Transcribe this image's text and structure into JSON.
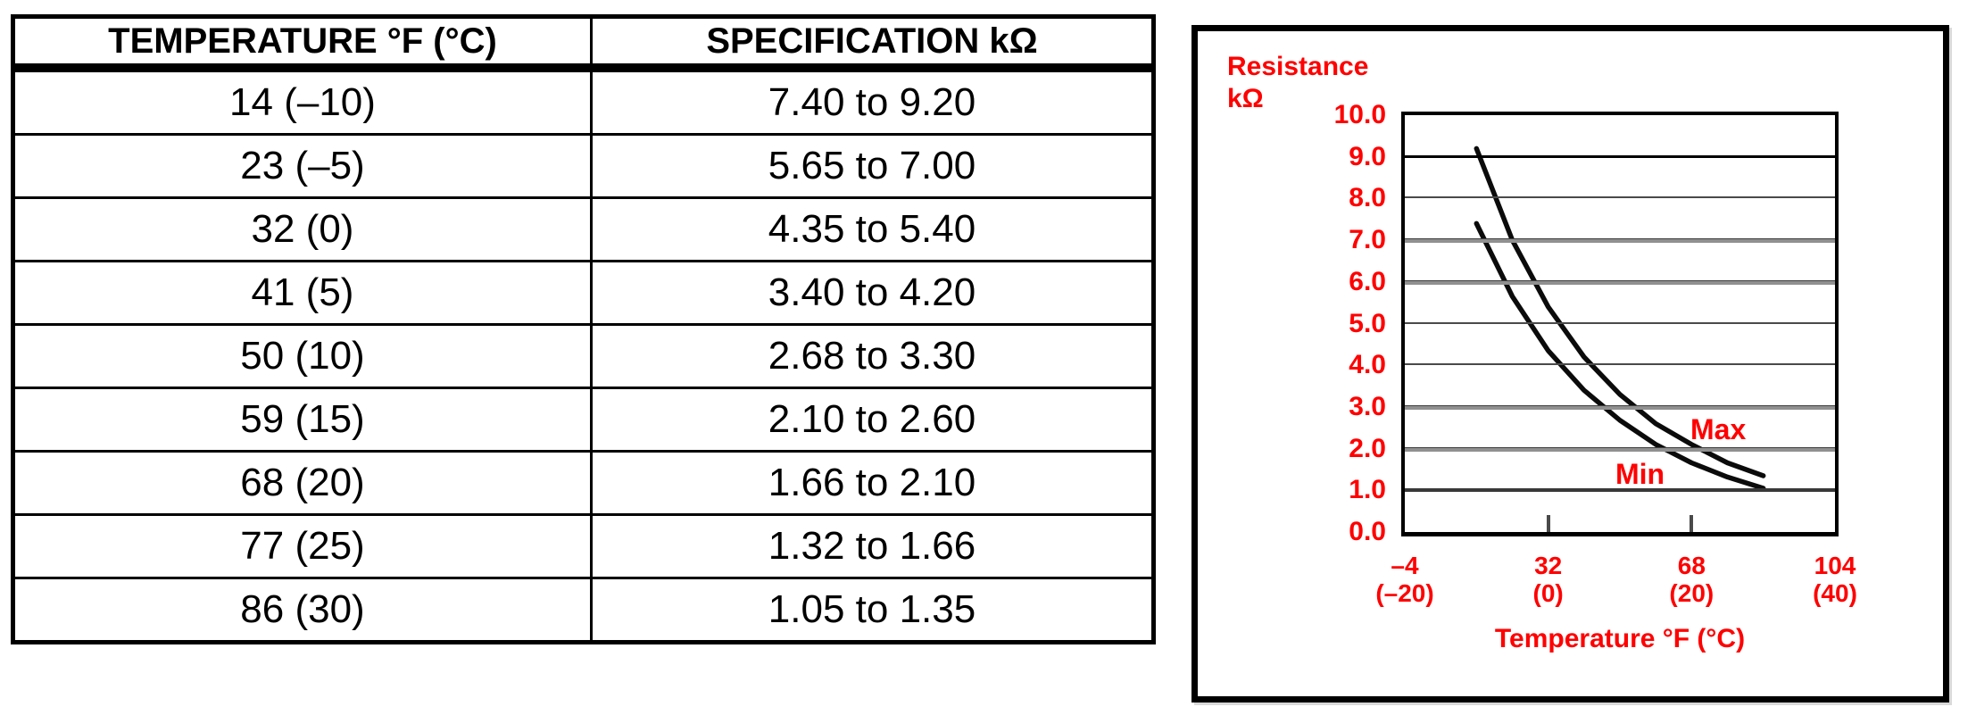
{
  "table": {
    "headers": [
      "TEMPERATURE °F (°C)",
      "SPECIFICATION kΩ"
    ],
    "rows": [
      [
        "14 (–10)",
        "7.40 to 9.20"
      ],
      [
        "23 (–5)",
        "5.65 to 7.00"
      ],
      [
        "32 (0)",
        "4.35 to 5.40"
      ],
      [
        "41 (5)",
        "3.40 to 4.20"
      ],
      [
        "50 (10)",
        "2.68 to 3.30"
      ],
      [
        "59 (15)",
        "2.10 to 2.60"
      ],
      [
        "68 (20)",
        "1.66 to 2.10"
      ],
      [
        "77 (25)",
        "1.32 to 1.66"
      ],
      [
        "86 (30)",
        "1.05 to 1.35"
      ]
    ]
  },
  "chart_data": {
    "type": "line",
    "title": "",
    "ylabel_line1": "Resistance",
    "ylabel_line2": "kΩ",
    "xlabel": "Temperature °F (°C)",
    "x": [
      14,
      23,
      32,
      41,
      50,
      59,
      68,
      77,
      86
    ],
    "series": [
      {
        "name": "Max",
        "values": [
          9.2,
          7.0,
          5.4,
          4.2,
          3.3,
          2.6,
          2.1,
          1.66,
          1.35
        ]
      },
      {
        "name": "Min",
        "values": [
          7.4,
          5.65,
          4.35,
          3.4,
          2.68,
          2.1,
          1.66,
          1.32,
          1.05
        ]
      }
    ],
    "xlim": [
      -4,
      104
    ],
    "ylim": [
      0,
      10
    ],
    "yticks": [
      {
        "v": 10,
        "label": "10.0"
      },
      {
        "v": 9,
        "label": "9.0"
      },
      {
        "v": 8,
        "label": "8.0"
      },
      {
        "v": 7,
        "label": "7.0"
      },
      {
        "v": 6,
        "label": "6.0"
      },
      {
        "v": 5,
        "label": "5.0"
      },
      {
        "v": 4,
        "label": "4.0"
      },
      {
        "v": 3,
        "label": "3.0"
      },
      {
        "v": 2,
        "label": "2.0"
      },
      {
        "v": 1,
        "label": "1.0"
      },
      {
        "v": 0,
        "label": "0.0"
      }
    ],
    "xticks": [
      {
        "v": -4,
        "line1": "–4",
        "line2": "(–20)",
        "tick": false
      },
      {
        "v": 32,
        "line1": "32",
        "line2": "(0)",
        "tick": true
      },
      {
        "v": 68,
        "line1": "68",
        "line2": "(20)",
        "tick": true
      },
      {
        "v": 104,
        "line1": "104",
        "line2": "(40)",
        "tick": false
      }
    ],
    "grid": "horizontal",
    "legend_position": "inline-curve-labels",
    "colors": {
      "accent": "#ff0000",
      "curve": "#0b0b0b"
    }
  }
}
